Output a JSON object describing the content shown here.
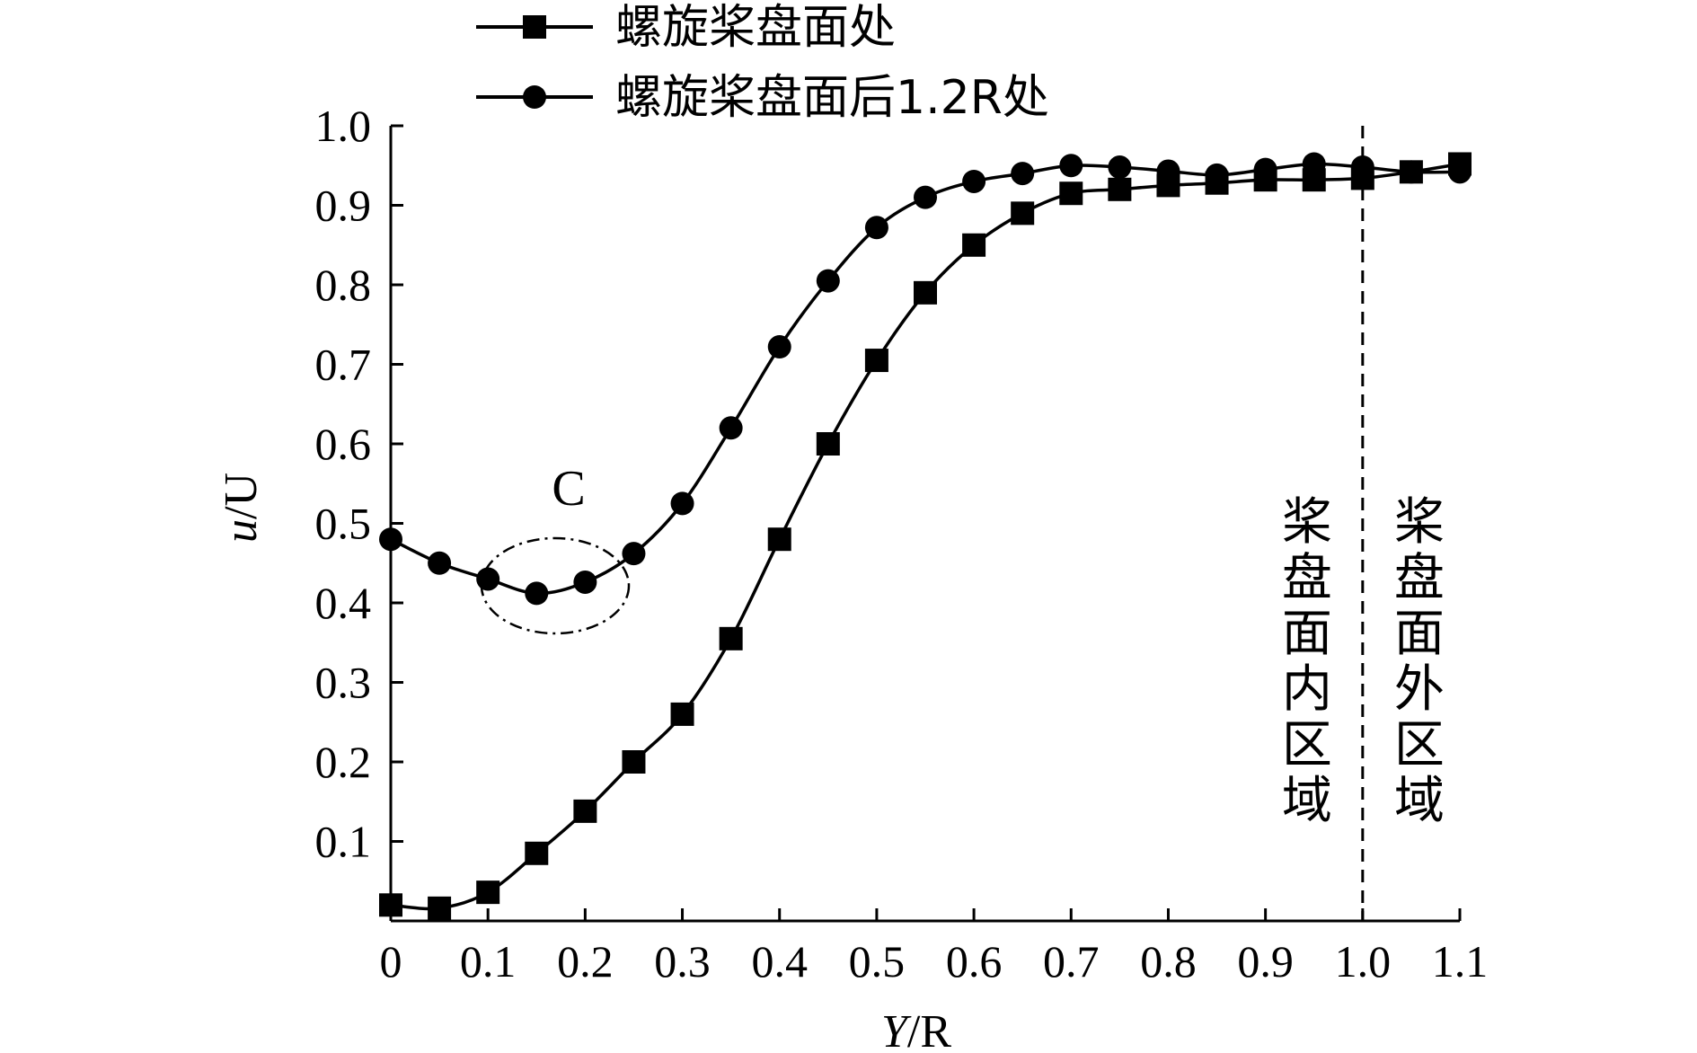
{
  "chart_data": {
    "type": "line",
    "xlabel_italic": "Y",
    "xlabel_rest": "/R",
    "ylabel_italic": "u",
    "ylabel_rest": "/U",
    "xlim": [
      0,
      1.1
    ],
    "ylim": [
      0,
      1.0
    ],
    "x_ticks": [
      "0",
      "0.1",
      "0.2",
      "0.3",
      "0.4",
      "0.5",
      "0.6",
      "0.7",
      "0.8",
      "0.9",
      "1.0",
      "1.1"
    ],
    "y_ticks": [
      "0.1",
      "0.2",
      "0.3",
      "0.4",
      "0.5",
      "0.6",
      "0.7",
      "0.8",
      "0.9",
      "1.0"
    ],
    "series": [
      {
        "name": "螺旋桨盘面处",
        "marker": "square",
        "x": [
          0.0,
          0.05,
          0.1,
          0.15,
          0.2,
          0.25,
          0.3,
          0.35,
          0.4,
          0.45,
          0.5,
          0.55,
          0.6,
          0.65,
          0.7,
          0.75,
          0.8,
          0.85,
          0.9,
          0.95,
          1.0,
          1.05,
          1.1
        ],
        "y": [
          0.02,
          0.016,
          0.036,
          0.085,
          0.138,
          0.2,
          0.26,
          0.355,
          0.48,
          0.6,
          0.705,
          0.79,
          0.85,
          0.89,
          0.915,
          0.92,
          0.925,
          0.928,
          0.932,
          0.932,
          0.934,
          0.942,
          0.952
        ]
      },
      {
        "name": "螺旋桨盘面后1.2R处",
        "marker": "circle",
        "x": [
          0.0,
          0.05,
          0.1,
          0.15,
          0.2,
          0.25,
          0.3,
          0.35,
          0.4,
          0.45,
          0.5,
          0.55,
          0.6,
          0.65,
          0.7,
          0.75,
          0.8,
          0.85,
          0.9,
          0.95,
          1.0,
          1.05,
          1.1
        ],
        "y": [
          0.48,
          0.45,
          0.43,
          0.412,
          0.426,
          0.462,
          0.525,
          0.62,
          0.722,
          0.805,
          0.872,
          0.91,
          0.93,
          0.94,
          0.95,
          0.948,
          0.943,
          0.938,
          0.945,
          0.952,
          0.948,
          0.942,
          0.942
        ]
      }
    ],
    "annotation_c": "C",
    "reference_line_x": 1.0,
    "region_inner": [
      "桨",
      "盘",
      "面",
      "内",
      "区",
      "域"
    ],
    "region_outer": [
      "桨",
      "盘",
      "面",
      "外",
      "区",
      "域"
    ],
    "legend_position": "top",
    "grid": false
  }
}
